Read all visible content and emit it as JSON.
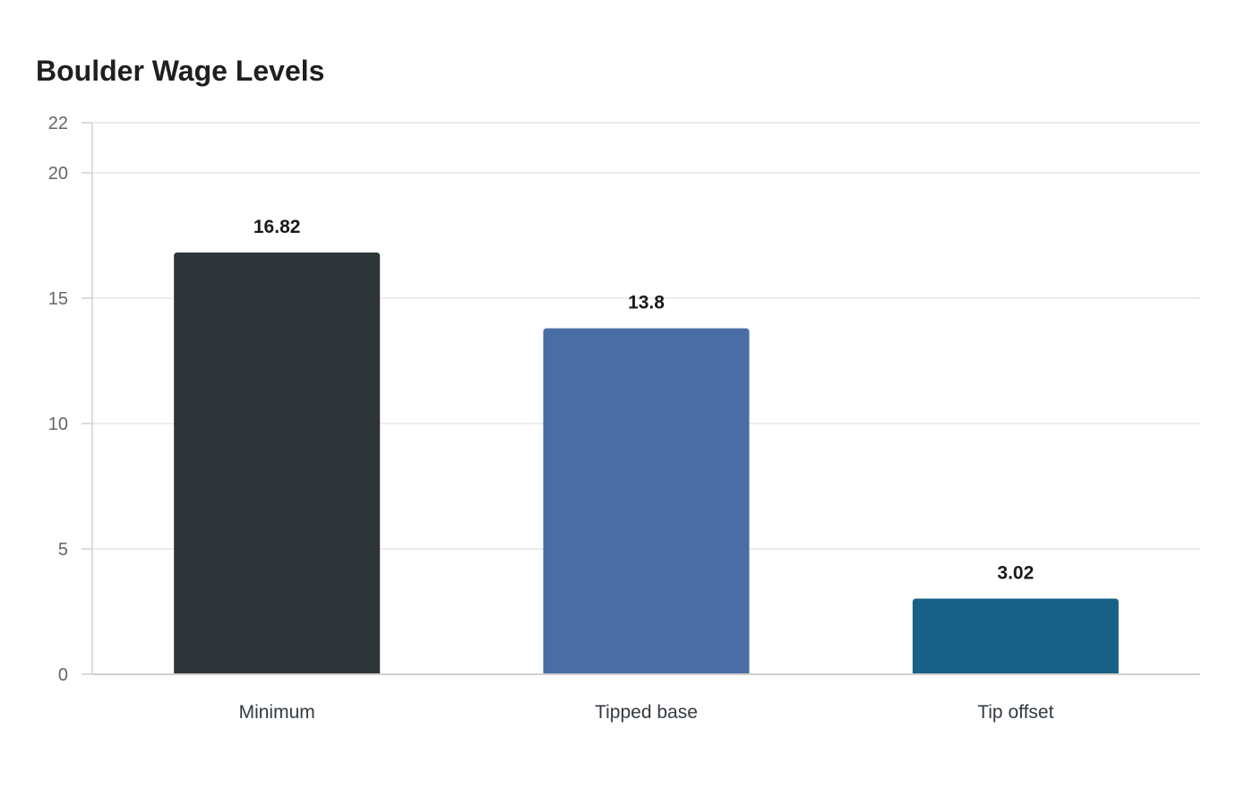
{
  "chart_data": {
    "type": "bar",
    "title": "Boulder Wage Levels",
    "xlabel": "",
    "ylabel": "",
    "categories": [
      "Minimum",
      "Tipped base",
      "Tip offset"
    ],
    "values": [
      16.82,
      13.8,
      3.02
    ],
    "value_labels": [
      "16.82",
      "13.8",
      "3.02"
    ],
    "colors": [
      "#2e3538",
      "#4a6ea3",
      "#176187"
    ],
    "ylim": [
      0,
      22
    ],
    "yticks": [
      0,
      5,
      10,
      15,
      20,
      22
    ],
    "ytick_labels": [
      "0",
      "5",
      "10",
      "15",
      "20",
      "22"
    ],
    "grid": true,
    "legend": "none"
  }
}
